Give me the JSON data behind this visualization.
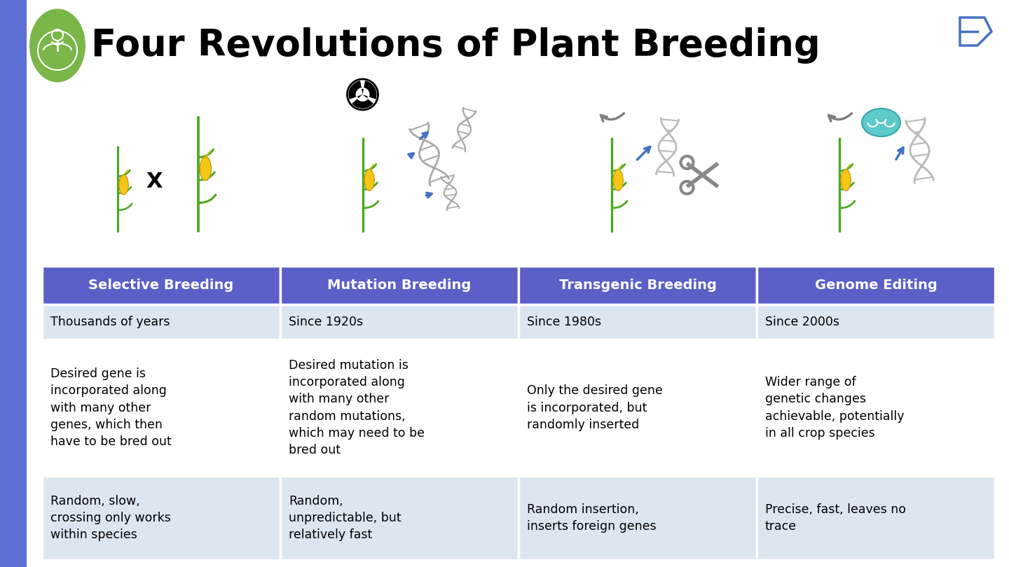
{
  "title": "Four Revolutions of Plant Breeding",
  "title_fontsize": 38,
  "title_fontweight": "bold",
  "background_color": "#ffffff",
  "accent_bar_color": "#5B6FD4",
  "header_bg_color": "#5B5FC7",
  "header_text_color": "#ffffff",
  "row1_bg_color": "#dce6f1",
  "row2_bg_color": "#ffffff",
  "row3_bg_color": "#dce6f1",
  "headers": [
    "Selective Breeding",
    "Mutation Breeding",
    "Transgenic Breeding",
    "Genome Editing"
  ],
  "row1": [
    "Thousands of years",
    "Since 1920s",
    "Since 1980s",
    "Since 2000s"
  ],
  "row2": [
    "Desired gene is\nincorporated along\nwith many other\ngenes, which then\nhave to be bred out",
    "Desired mutation is\nincorporated along\nwith many other\nrandom mutations,\nwhich may need to be\nbred out",
    "Only the desired gene\nis incorporated, but\nrandomly inserted",
    "Wider range of\ngenetic changes\nachievable, potentially\nin all crop species"
  ],
  "row3": [
    "Random, slow,\ncrossing only works\nwithin species",
    "Random,\nunpredictable, but\nrelatively fast",
    "Random insertion,\ninserts foreign genes",
    "Precise, fast, leaves no\ntrace"
  ],
  "cell_fontsize": 12.5,
  "header_fontsize": 14,
  "logo_bg_color": "#7ab648",
  "corn_green": "#4aaa20",
  "corn_yellow": "#f5c518",
  "corn_dark_yellow": "#e8a800",
  "dna_gray": "#aaaaaa",
  "arrow_blue": "#4472c4",
  "scissors_gray": "#888888",
  "brain_teal": "#40c0c0",
  "radiation_black": "#111111"
}
